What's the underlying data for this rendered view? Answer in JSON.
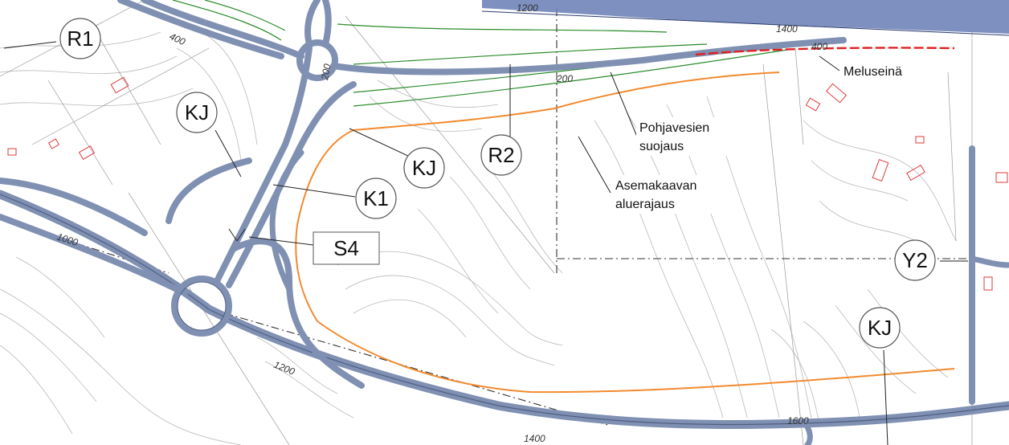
{
  "zones": {
    "r1": "R1",
    "kj_a": "KJ",
    "kj_b": "KJ",
    "kj_c": "KJ",
    "r2": "R2",
    "k1": "K1",
    "s4": "S4",
    "y2": "Y2"
  },
  "annotations": {
    "noise_barrier": "Meluseinä",
    "groundwater_line1": "Pohjavesien",
    "groundwater_line2": "suojaus",
    "boundary_line1": "Asemakaavan",
    "boundary_line2": "aluerajaus"
  },
  "chainage": {
    "c1200_top": "1200",
    "c1400_top": "1400",
    "c400_a": "400",
    "c400_b": "400",
    "c200_a": "200",
    "c200_b": "200",
    "c1000": "1000",
    "c1200_bottom": "1200",
    "c1400_bottom": "1400",
    "c1600": "1600"
  },
  "colors": {
    "road": "#7f90b3",
    "plan_area_boundary": "#f28a2e",
    "noise_barrier": "#e02020",
    "groundwater": "#2a8a2a",
    "highway": "#6f84b8"
  }
}
